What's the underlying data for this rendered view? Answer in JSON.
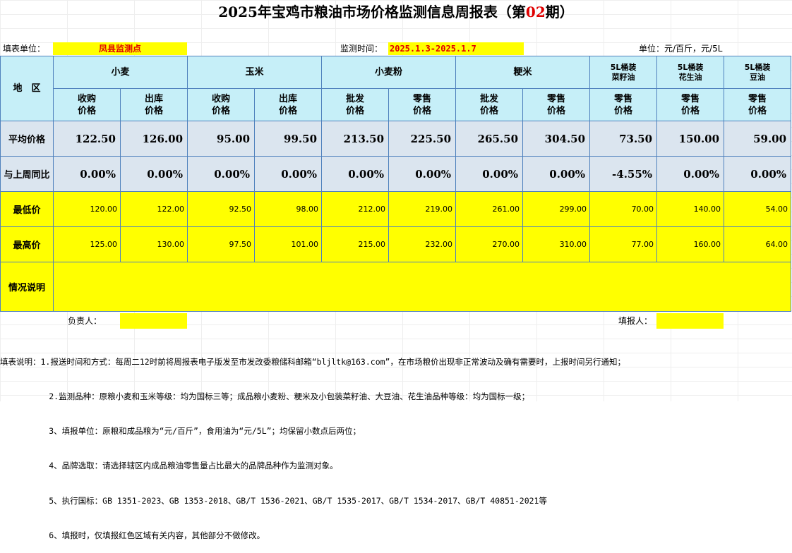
{
  "title": {
    "prefix": "2025年宝鸡市粮油市场价格监测信息周报表（第",
    "issue": "02",
    "suffix": "期）"
  },
  "meta": {
    "unit_label": "填表单位：",
    "unit_value": "凤县监测点",
    "period_label": "监测时间：",
    "period_value": "2025.1.3-2025.1.7",
    "price_unit": "单位：元/百斤，元/5L"
  },
  "table": {
    "region_header": "地　区",
    "groups": [
      "小麦",
      "玉米",
      "小麦粉",
      "粳米"
    ],
    "oils": [
      {
        "line1": "5L桶装",
        "line2": "菜籽油"
      },
      {
        "line1": "5L桶装",
        "line2": "花生油"
      },
      {
        "line1": "5L桶装",
        "line2": "豆油"
      }
    ],
    "subheaders": [
      {
        "line1": "收购",
        "line2": "价格"
      },
      {
        "line1": "出库",
        "line2": "价格"
      },
      {
        "line1": "收购",
        "line2": "价格"
      },
      {
        "line1": "出库",
        "line2": "价格"
      },
      {
        "line1": "批发",
        "line2": "价格"
      },
      {
        "line1": "零售",
        "line2": "价格"
      },
      {
        "line1": "批发",
        "line2": "价格"
      },
      {
        "line1": "零售",
        "line2": "价格"
      },
      {
        "line1": "零售",
        "line2": "价格"
      },
      {
        "line1": "零售",
        "line2": "价格"
      },
      {
        "line1": "零售",
        "line2": "价格"
      }
    ],
    "rows": [
      {
        "label": "平均价格",
        "values": [
          "122.50",
          "126.00",
          "95.00",
          "99.50",
          "213.50",
          "225.50",
          "265.50",
          "304.50",
          "73.50",
          "150.00",
          "59.00"
        ]
      },
      {
        "label": "与上周同比",
        "values": [
          "0.00%",
          "0.00%",
          "0.00%",
          "0.00%",
          "0.00%",
          "0.00%",
          "0.00%",
          "0.00%",
          "-4.55%",
          "0.00%",
          "0.00%"
        ]
      },
      {
        "label": "最低价",
        "values": [
          "120.00",
          "122.00",
          "92.50",
          "98.00",
          "212.00",
          "219.00",
          "261.00",
          "299.00",
          "70.00",
          "140.00",
          "54.00"
        ]
      },
      {
        "label": "最高价",
        "values": [
          "125.00",
          "130.00",
          "97.50",
          "101.00",
          "215.00",
          "232.00",
          "270.00",
          "310.00",
          "77.00",
          "160.00",
          "64.00"
        ]
      }
    ],
    "remarks_label": "情况说明",
    "remarks_value": ""
  },
  "signatures": {
    "responsible": "负责人：",
    "filler": "填报人："
  },
  "notes": [
    "填表说明：1.报送时间和方式：每周二12时前将周报表电子版发至市发改委粮储科邮箱“bljltk@163.com”，在市场粮价出现非正常波动及确有需要时，上报时间另行通知；",
    "          2.监测品种：原粮小麦和玉米等级：均为国标三等；成品粮小麦粉、粳米及小包装菜籽油、大豆油、花生油品种等级：均为国标一级；",
    "          3、填报单位：原粮和成品粮为“元/百斤”，食用油为“元/5L”；均保留小数点后两位；",
    "          4、品牌选取：请选择辖区内成品粮油零售量占比最大的品牌品种作为监测对象。",
    "          5、执行国标：GB 1351-2023、GB 1353-2018、GB/T 1536-2021、GB/T 1535-2017、GB/T 1534-2017、GB/T 40851-2021等",
    "          6、填报时，仅填报红色区域有关内容，其他部分不做修改。"
  ]
}
